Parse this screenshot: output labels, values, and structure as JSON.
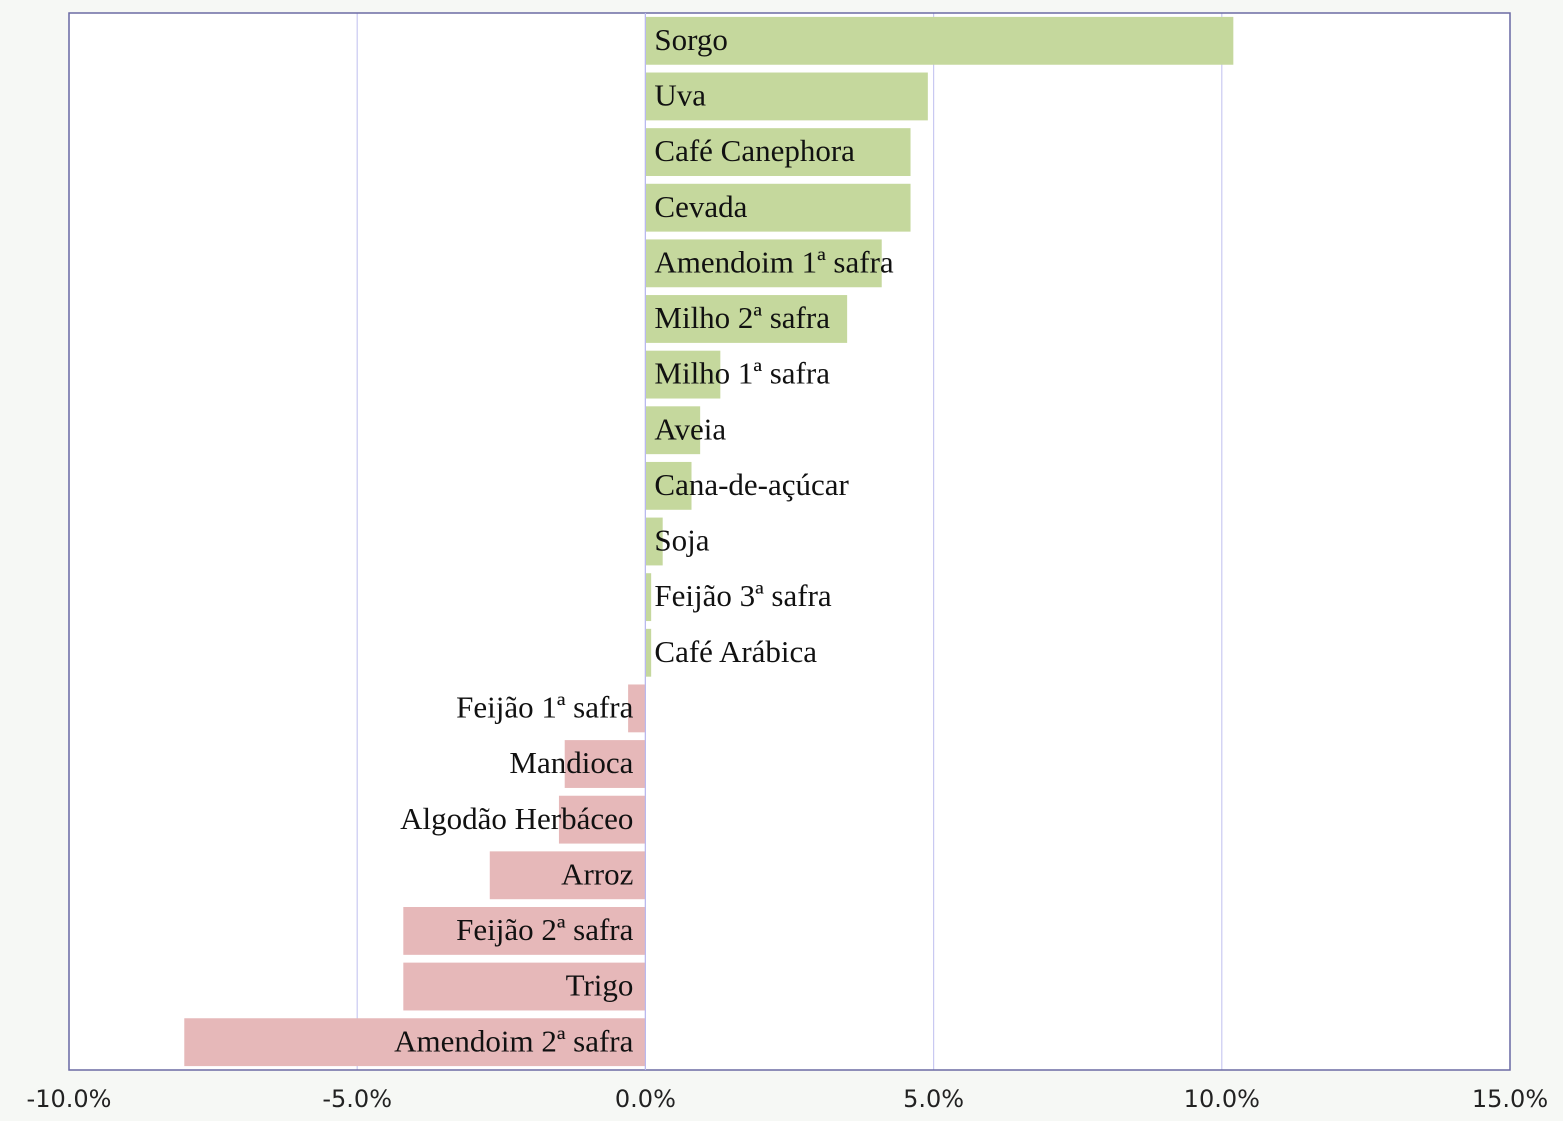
{
  "chart_data": {
    "type": "barh",
    "categories": [
      "Sorgo",
      "Uva",
      "Café Canephora",
      "Cevada",
      "Amendoim 1ª safra",
      "Milho 2ª safra",
      "Milho 1ª safra",
      "Aveia",
      "Cana-de-açúcar",
      "Soja",
      "Feijão 3ª safra",
      "Café Arábica",
      "Feijão 1ª safra",
      "Mandioca",
      "Algodão Herbáceo",
      "Arroz",
      "Feijão 2ª safra",
      "Trigo",
      "Amendoim 2ª safra"
    ],
    "values": [
      10.2,
      4.9,
      4.6,
      4.6,
      4.1,
      3.5,
      1.3,
      0.95,
      0.8,
      0.3,
      0.1,
      0.1,
      -0.3,
      -1.4,
      -1.5,
      -2.7,
      -4.2,
      -4.2,
      -8.0
    ],
    "positive_color": "#c5d89d",
    "negative_color": "#e6b8b9",
    "xlim": [
      -10,
      15
    ],
    "xticks": [
      {
        "value": -10,
        "label": "-10.0%"
      },
      {
        "value": -5,
        "label": "-5.0%"
      },
      {
        "value": 0,
        "label": "0.0%"
      },
      {
        "value": 5,
        "label": "5.0%"
      },
      {
        "value": 10,
        "label": "10.0%"
      },
      {
        "value": 15,
        "label": "15.0%"
      }
    ],
    "grid": true
  }
}
